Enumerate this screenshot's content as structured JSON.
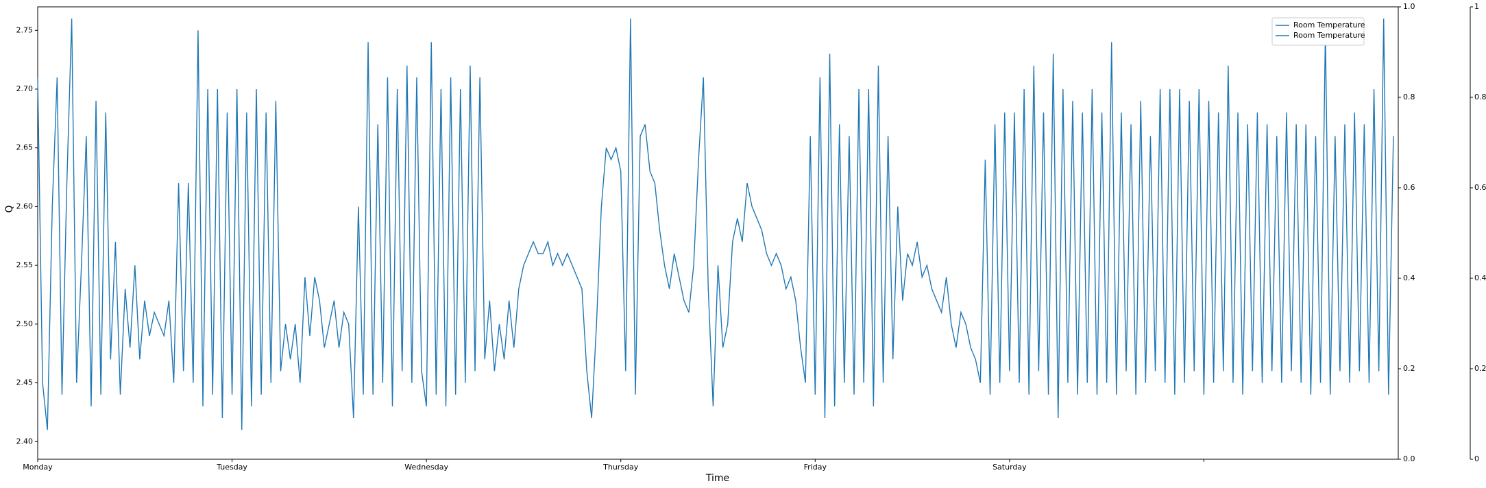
{
  "chart_data": {
    "type": "line",
    "ylabel": "Q",
    "xlabel": "Time",
    "xlim": [
      0,
      7
    ],
    "xticks": [
      {
        "value": 0,
        "label": "Monday"
      },
      {
        "value": 1,
        "label": "Tuesday"
      },
      {
        "value": 2,
        "label": "Wednesday"
      },
      {
        "value": 3,
        "label": "Thursday"
      },
      {
        "value": 4,
        "label": "Friday"
      },
      {
        "value": 5,
        "label": "Saturday"
      },
      {
        "value": 6,
        "label": null
      }
    ],
    "ylim": [
      2.385,
      2.77
    ],
    "yticks": [
      {
        "value": 2.4,
        "label": "2.40"
      },
      2.45,
      {
        "value": 2.5,
        "label": "2.50"
      },
      2.55,
      {
        "value": 2.6,
        "label": "2.60"
      },
      2.65,
      {
        "value": 2.7,
        "label": "2.70"
      },
      2.75
    ],
    "y2lim": [
      0,
      1
    ],
    "y2ticks": [
      {
        "value": 0,
        "label": "0.0"
      },
      0.2,
      0.4,
      0.6,
      0.8,
      {
        "value": 1,
        "label": "1.0"
      }
    ],
    "y3lim": [
      0,
      1
    ],
    "y3ticks": [
      0,
      0.2,
      0.4,
      0.6,
      0.8,
      1
    ],
    "legend": {
      "loc": "upper right",
      "entries": [
        {
          "label": "Room Temperature",
          "color": "#1f77b4"
        },
        {
          "label": "Room Temperature",
          "color": "#1f77b4"
        }
      ]
    },
    "x": [
      0,
      0.025,
      0.05,
      0.075,
      0.1,
      0.125,
      0.15,
      0.175,
      0.2,
      0.225,
      0.25,
      0.275,
      0.3,
      0.325,
      0.35,
      0.375,
      0.4,
      0.425,
      0.45,
      0.475,
      0.5,
      0.525,
      0.55,
      0.575,
      0.6,
      0.625,
      0.65,
      0.675,
      0.7,
      0.725,
      0.75,
      0.775,
      0.8,
      0.825,
      0.85,
      0.875,
      0.9,
      0.925,
      0.95,
      0.975,
      1,
      1.025,
      1.05,
      1.075,
      1.1,
      1.125,
      1.15,
      1.175,
      1.2,
      1.225,
      1.25,
      1.275,
      1.3,
      1.325,
      1.35,
      1.375,
      1.4,
      1.425,
      1.45,
      1.475,
      1.5,
      1.525,
      1.55,
      1.575,
      1.6,
      1.625,
      1.65,
      1.675,
      1.7,
      1.725,
      1.75,
      1.775,
      1.8,
      1.825,
      1.85,
      1.875,
      1.9,
      1.925,
      1.95,
      1.975,
      2,
      2.025,
      2.05,
      2.075,
      2.1,
      2.125,
      2.15,
      2.175,
      2.2,
      2.225,
      2.25,
      2.275,
      2.3,
      2.325,
      2.35,
      2.375,
      2.4,
      2.425,
      2.45,
      2.475,
      2.5,
      2.525,
      2.55,
      2.575,
      2.6,
      2.625,
      2.65,
      2.675,
      2.7,
      2.725,
      2.75,
      2.775,
      2.8,
      2.825,
      2.85,
      2.875,
      2.9,
      2.925,
      2.95,
      2.975,
      3,
      3.025,
      3.05,
      3.075,
      3.1,
      3.125,
      3.15,
      3.175,
      3.2,
      3.225,
      3.25,
      3.275,
      3.3,
      3.325,
      3.35,
      3.375,
      3.4,
      3.425,
      3.45,
      3.475,
      3.5,
      3.525,
      3.55,
      3.575,
      3.6,
      3.625,
      3.65,
      3.675,
      3.7,
      3.725,
      3.75,
      3.775,
      3.8,
      3.825,
      3.85,
      3.875,
      3.9,
      3.925,
      3.95,
      3.975,
      4,
      4.025,
      4.05,
      4.075,
      4.1,
      4.125,
      4.15,
      4.175,
      4.2,
      4.225,
      4.25,
      4.275,
      4.3,
      4.325,
      4.35,
      4.375,
      4.4,
      4.425,
      4.45,
      4.475,
      4.5,
      4.525,
      4.55,
      4.575,
      4.6,
      4.625,
      4.65,
      4.675,
      4.7,
      4.725,
      4.75,
      4.775,
      4.8,
      4.825,
      4.85,
      4.875,
      4.9,
      4.925,
      4.95,
      4.975,
      5,
      5.025,
      5.05,
      5.075,
      5.1,
      5.125,
      5.15,
      5.175,
      5.2,
      5.225,
      5.25,
      5.275,
      5.3,
      5.325,
      5.35,
      5.375,
      5.4,
      5.425,
      5.45,
      5.475,
      5.5,
      5.525,
      5.55,
      5.575,
      5.6,
      5.625,
      5.65,
      5.675,
      5.7,
      5.725,
      5.75,
      5.775,
      5.8,
      5.825,
      5.85,
      5.875,
      5.9,
      5.925,
      5.95,
      5.975,
      6,
      6.025,
      6.05,
      6.075,
      6.1,
      6.125,
      6.15,
      6.175,
      6.2,
      6.225,
      6.25,
      6.275,
      6.3,
      6.325,
      6.35,
      6.375,
      6.4,
      6.425,
      6.45,
      6.475,
      6.5,
      6.525,
      6.55,
      6.575,
      6.6,
      6.625,
      6.65,
      6.675,
      6.7,
      6.725,
      6.75,
      6.775,
      6.8,
      6.825,
      6.85,
      6.875,
      6.9,
      6.925,
      6.95,
      6.975
    ],
    "series": [
      {
        "name": "Room Temperature",
        "color": "#1f77b4",
        "values": [
          2.71,
          2.45,
          2.41,
          2.6,
          2.71,
          2.44,
          2.62,
          2.76,
          2.45,
          2.55,
          2.66,
          2.43,
          2.69,
          2.44,
          2.68,
          2.47,
          2.57,
          2.44,
          2.53,
          2.48,
          2.55,
          2.47,
          2.52,
          2.49,
          2.51,
          2.5,
          2.49,
          2.52,
          2.45,
          2.62,
          2.46,
          2.62,
          2.45,
          2.75,
          2.43,
          2.7,
          2.44,
          2.7,
          2.42,
          2.68,
          2.44,
          2.7,
          2.41,
          2.68,
          2.43,
          2.7,
          2.44,
          2.68,
          2.45,
          2.69,
          2.46,
          2.5,
          2.47,
          2.5,
          2.45,
          2.54,
          2.49,
          2.54,
          2.52,
          2.48,
          2.5,
          2.52,
          2.48,
          2.51,
          2.5,
          2.42,
          2.6,
          2.44,
          2.74,
          2.44,
          2.67,
          2.45,
          2.71,
          2.43,
          2.7,
          2.46,
          2.72,
          2.45,
          2.71,
          2.46,
          2.43,
          2.74,
          2.44,
          2.7,
          2.43,
          2.71,
          2.44,
          2.7,
          2.45,
          2.72,
          2.46,
          2.71,
          2.47,
          2.52,
          2.46,
          2.5,
          2.47,
          2.52,
          2.48,
          2.53,
          2.55,
          2.56,
          2.57,
          2.56,
          2.56,
          2.57,
          2.55,
          2.56,
          2.55,
          2.56,
          2.55,
          2.54,
          2.53,
          2.46,
          2.42,
          2.5,
          2.6,
          2.65,
          2.64,
          2.65,
          2.63,
          2.46,
          2.76,
          2.44,
          2.66,
          2.67,
          2.63,
          2.62,
          2.58,
          2.55,
          2.53,
          2.56,
          2.54,
          2.52,
          2.51,
          2.55,
          2.64,
          2.71,
          2.53,
          2.43,
          2.55,
          2.48,
          2.5,
          2.57,
          2.59,
          2.57,
          2.62,
          2.6,
          2.59,
          2.58,
          2.56,
          2.55,
          2.56,
          2.55,
          2.53,
          2.54,
          2.52,
          2.48,
          2.45,
          2.66,
          2.44,
          2.71,
          2.42,
          2.73,
          2.43,
          2.67,
          2.45,
          2.66,
          2.44,
          2.7,
          2.45,
          2.7,
          2.43,
          2.72,
          2.45,
          2.66,
          2.47,
          2.6,
          2.52,
          2.56,
          2.55,
          2.57,
          2.54,
          2.55,
          2.53,
          2.52,
          2.51,
          2.54,
          2.5,
          2.48,
          2.51,
          2.5,
          2.48,
          2.47,
          2.45,
          2.64,
          2.44,
          2.67,
          2.45,
          2.68,
          2.46,
          2.68,
          2.45,
          2.7,
          2.44,
          2.72,
          2.46,
          2.68,
          2.44,
          2.73,
          2.42,
          2.7,
          2.45,
          2.69,
          2.44,
          2.68,
          2.45,
          2.7,
          2.44,
          2.68,
          2.45,
          2.74,
          2.44,
          2.68,
          2.46,
          2.67,
          2.44,
          2.69,
          2.45,
          2.66,
          2.46,
          2.7,
          2.45,
          2.7,
          2.44,
          2.7,
          2.45,
          2.69,
          2.46,
          2.7,
          2.44,
          2.69,
          2.45,
          2.68,
          2.46,
          2.72,
          2.45,
          2.68,
          2.44,
          2.67,
          2.46,
          2.68,
          2.45,
          2.67,
          2.46,
          2.66,
          2.45,
          2.68,
          2.46,
          2.67,
          2.45,
          2.67,
          2.44,
          2.66,
          2.45,
          2.75,
          2.44,
          2.66,
          2.46,
          2.67,
          2.45,
          2.68,
          2.46,
          2.67,
          2.45,
          2.7,
          2.46,
          2.76,
          2.44,
          2.66
        ]
      }
    ]
  }
}
